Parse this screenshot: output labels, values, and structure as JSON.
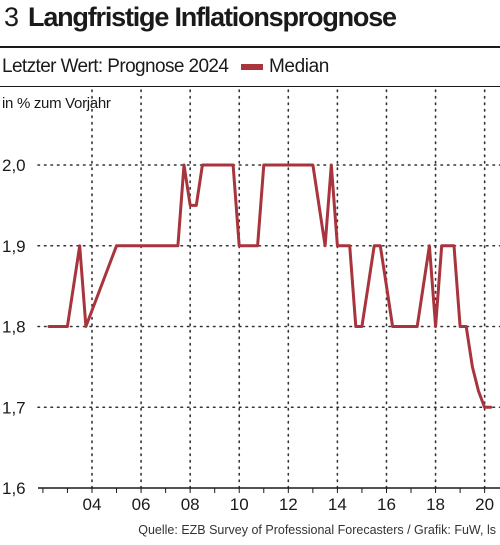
{
  "header": {
    "figure_number": "3",
    "title": "Langfristige Inflationsprognose"
  },
  "subtitle": "Letzter Wert: Prognose 2024",
  "legend": {
    "label": "Median",
    "color": "#a8343d"
  },
  "unit_label": "in % zum Vorjahr",
  "source": "Quelle: EZB Survey of Professional Forecasters / Grafik: FuW, ls",
  "chart_data": {
    "type": "line",
    "title": "Langfristige Inflationsprognose",
    "subtitle": "Letzter Wert: Prognose 2024",
    "ylabel": "in % zum Vorjahr",
    "xlabel": "",
    "xlim": [
      2001.8,
      2020.3
    ],
    "ylim": [
      1.6,
      2.0
    ],
    "yticks": [
      1.6,
      1.7,
      1.8,
      1.9,
      2.0
    ],
    "ytick_labels": [
      "1,6",
      "1,7",
      "1,8",
      "1,9",
      "2,0"
    ],
    "xticks": [
      2004,
      2006,
      2008,
      2010,
      2012,
      2014,
      2016,
      2018,
      2020
    ],
    "xtick_labels": [
      "04",
      "06",
      "08",
      "10",
      "12",
      "14",
      "16",
      "18",
      "20"
    ],
    "grid": {
      "vertical": true,
      "horizontal": true,
      "style": "dotted"
    },
    "legend_position": "top",
    "series": [
      {
        "name": "Median",
        "color": "#a8343d",
        "x": [
          2002.25,
          2002.75,
          2003.0,
          2003.5,
          2003.75,
          2005.0,
          2006.0,
          2007.0,
          2007.25,
          2007.5,
          2007.75,
          2008.0,
          2008.25,
          2008.5,
          2009.0,
          2009.5,
          2009.75,
          2010.0,
          2010.25,
          2010.75,
          2011.0,
          2011.5,
          2012.0,
          2012.5,
          2013.0,
          2013.25,
          2013.5,
          2013.75,
          2014.0,
          2014.5,
          2014.75,
          2015.0,
          2015.25,
          2015.5,
          2015.75,
          2016.0,
          2016.25,
          2016.5,
          2017.0,
          2017.25,
          2017.5,
          2017.75,
          2018.0,
          2018.25,
          2018.5,
          2018.75,
          2019.0,
          2019.25,
          2019.5,
          2019.75,
          2020.0,
          2020.25
        ],
        "values": [
          1.8,
          1.8,
          1.8,
          1.9,
          1.8,
          1.9,
          1.9,
          1.9,
          1.9,
          1.9,
          2.0,
          1.95,
          1.95,
          2.0,
          2.0,
          2.0,
          2.0,
          1.9,
          1.9,
          1.9,
          2.0,
          2.0,
          2.0,
          2.0,
          2.0,
          1.95,
          1.9,
          2.0,
          1.9,
          1.9,
          1.8,
          1.8,
          1.85,
          1.9,
          1.9,
          1.85,
          1.8,
          1.8,
          1.8,
          1.8,
          1.85,
          1.9,
          1.8,
          1.9,
          1.9,
          1.9,
          1.8,
          1.8,
          1.75,
          1.72,
          1.7,
          1.7
        ]
      }
    ]
  }
}
